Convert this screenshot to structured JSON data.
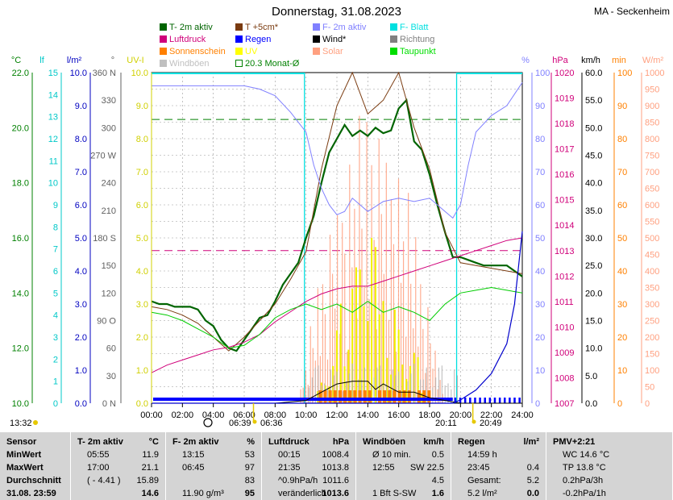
{
  "header": {
    "title": "Donnerstag, 31.08.2023",
    "station": "MA - Seckenheim"
  },
  "legend": [
    {
      "label": "T- 2m aktiv",
      "color": "#006400"
    },
    {
      "label": "T +5cm*",
      "color": "#7a3b10"
    },
    {
      "label": "F- 2m aktiv",
      "color": "#8080ff"
    },
    {
      "label": "F- Blatt",
      "color": "#00e0e0"
    },
    {
      "label": "Luftdruck",
      "color": "#d0007a"
    },
    {
      "label": "Regen",
      "color": "#0000ff"
    },
    {
      "label": "Wind*",
      "color": "#000000"
    },
    {
      "label": "Richtung",
      "color": "#808080"
    },
    {
      "label": "Sonnenschein",
      "color": "#ff8000"
    },
    {
      "label": "UV",
      "color": "#ffff00"
    },
    {
      "label": "Solar",
      "color": "#ffa080"
    },
    {
      "label": "Taupunkt",
      "color": "#00dd00"
    },
    {
      "label": "Windböen",
      "color": "#c0c0c0"
    },
    {
      "label": "20.3 Monat-Ø",
      "color": "#008000"
    }
  ],
  "axes": {
    "temp": {
      "unit": "°C",
      "ticks": [
        "22.0",
        "20.0",
        "18.0",
        "16.0",
        "14.0",
        "12.0",
        "10.0"
      ],
      "color": "#008000"
    },
    "leaf": {
      "unit": "lf",
      "ticks": [
        "15",
        "14",
        "13",
        "12",
        "11",
        "10",
        "9",
        "8",
        "7",
        "6",
        "5",
        "4",
        "3",
        "2",
        "1",
        "0"
      ],
      "color": "#00c8c8"
    },
    "rain": {
      "unit": "l/m²",
      "ticks": [
        "10.0",
        "9.0",
        "8.0",
        "7.0",
        "6.0",
        "5.0",
        "4.0",
        "3.0",
        "2.0",
        "1.0",
        "0.0"
      ],
      "color": "#0000c0"
    },
    "dir": {
      "unit": "°",
      "ticks": [
        "360 N",
        "330",
        "300",
        "270 W",
        "240",
        "210",
        "180 S",
        "150",
        "120",
        "90 O",
        "60",
        "30",
        "0 N"
      ],
      "color": "#606060"
    },
    "uv": {
      "unit": "UV-I",
      "ticks": [
        "10.0",
        "9.0",
        "8.0",
        "7.0",
        "6.0",
        "5.0",
        "4.0",
        "3.0",
        "2.0",
        "1.0",
        "0.0"
      ],
      "color": "#d0d000"
    },
    "hum": {
      "unit": "%",
      "ticks": [
        "100",
        "90",
        "80",
        "70",
        "60",
        "50",
        "40",
        "30",
        "20",
        "10",
        "0"
      ],
      "color": "#8080ff"
    },
    "press": {
      "unit": "hPa",
      "ticks": [
        "1020",
        "1019",
        "1018",
        "1017",
        "1016",
        "1015",
        "1014",
        "1013",
        "1012",
        "1011",
        "1010",
        "1009",
        "1008",
        "1007"
      ],
      "color": "#d0007a"
    },
    "wind": {
      "unit": "km/h",
      "ticks": [
        "60.0",
        "55.0",
        "50.0",
        "45.0",
        "40.0",
        "35.0",
        "30.0",
        "25.0",
        "20.0",
        "15.0",
        "10.0",
        "5.0",
        "0.0"
      ],
      "color": "#000000"
    },
    "min": {
      "unit": "min",
      "ticks": [
        "100",
        "90",
        "80",
        "70",
        "60",
        "50",
        "40",
        "30",
        "20",
        "10",
        "0"
      ],
      "color": "#ff8000"
    },
    "solar": {
      "unit": "W/m²",
      "ticks": [
        "1000",
        "950",
        "900",
        "850",
        "800",
        "750",
        "700",
        "650",
        "600",
        "550",
        "500",
        "450",
        "400",
        "350",
        "300",
        "250",
        "200",
        "150",
        "100",
        "50",
        "0"
      ],
      "color": "#ffa080"
    },
    "time": [
      "00:00",
      "02:00",
      "04:00",
      "06:00",
      "08:00",
      "10:00",
      "12:00",
      "14:00",
      "16:00",
      "18:00",
      "20:00",
      "22:00",
      "24:00"
    ]
  },
  "sun": {
    "rise": "06:39",
    "set": "20:49",
    "rise_up_to": "06:36",
    "set_from": "20:11",
    "current_time": "13:32"
  },
  "chart_data": {
    "type": "line",
    "title": "Donnerstag, 31.08.2023",
    "x_unit": "hours",
    "xlim": [
      0,
      24
    ],
    "month_avg_temp": 20.3,
    "series": [
      {
        "name": "T- 2m aktiv",
        "axis": "temp",
        "ylim": [
          10,
          22
        ],
        "x": [
          0,
          0.5,
          1,
          1.5,
          2,
          2.5,
          3,
          3.5,
          4,
          4.5,
          5,
          5.5,
          6,
          6.5,
          7,
          7.5,
          8,
          8.5,
          9,
          9.5,
          10,
          10.5,
          11,
          11.5,
          12,
          12.5,
          13,
          13.5,
          14,
          14.5,
          15,
          15.5,
          16,
          16.5,
          17,
          17.5,
          18,
          18.5,
          19,
          19.5,
          20,
          20.5,
          21,
          21.5,
          22,
          22.5,
          23,
          23.5,
          24
        ],
        "y": [
          13.7,
          13.6,
          13.6,
          13.5,
          13.5,
          13.5,
          13.4,
          13.0,
          12.8,
          12.3,
          12.0,
          11.9,
          12.3,
          12.7,
          13.1,
          13.2,
          13.7,
          14.3,
          14.7,
          15.1,
          16.0,
          16.8,
          18.0,
          19.1,
          19.6,
          20.1,
          19.7,
          19.9,
          19.7,
          20.0,
          19.8,
          19.9,
          20.7,
          21.0,
          19.5,
          19.2,
          18.3,
          17.2,
          16.2,
          15.3,
          15.3,
          15.2,
          15.1,
          15.0,
          15.0,
          15.0,
          15.0,
          14.8,
          14.6
        ]
      },
      {
        "name": "T +5cm*",
        "axis": "temp",
        "ylim": [
          10,
          22
        ],
        "x": [
          0,
          1,
          2,
          3,
          4,
          5,
          6,
          7,
          8,
          9,
          10,
          11,
          12,
          13,
          14,
          15,
          16,
          17,
          18,
          19,
          20,
          21,
          22,
          23,
          24
        ],
        "y": [
          13.5,
          13.4,
          13.2,
          12.9,
          12.4,
          11.9,
          12.4,
          13.0,
          13.6,
          14.5,
          15.5,
          18.5,
          20.8,
          22.0,
          20.5,
          21.0,
          22.0,
          20.0,
          18.5,
          16.2,
          15.1,
          15.0,
          14.9,
          14.8,
          14.7
        ]
      },
      {
        "name": "F- 2m aktiv",
        "axis": "hum",
        "ylim": [
          0,
          100
        ],
        "x": [
          0,
          2,
          4,
          6,
          7,
          8,
          9,
          10,
          10.5,
          11,
          11.5,
          12,
          12.5,
          13,
          14,
          15,
          16,
          17,
          18,
          19,
          19.5,
          20,
          20.5,
          21,
          22,
          23,
          24
        ],
        "y": [
          96,
          96,
          96,
          96,
          95,
          93,
          88,
          82,
          72,
          65,
          60,
          57,
          58,
          62,
          58,
          61,
          62,
          61,
          62,
          58,
          56,
          60,
          72,
          82,
          87,
          90,
          97
        ]
      },
      {
        "name": "Luftdruck",
        "axis": "press",
        "ylim": [
          1007,
          1020
        ],
        "x": [
          0,
          1,
          2,
          3,
          4,
          5,
          6,
          7,
          8,
          9,
          10,
          11,
          12,
          13,
          14,
          15,
          16,
          17,
          18,
          19,
          20,
          21,
          22,
          23,
          24
        ],
        "y": [
          1008.2,
          1008.5,
          1008.7,
          1008.9,
          1009.1,
          1009.2,
          1009.4,
          1009.7,
          1010.2,
          1010.6,
          1011.0,
          1011.3,
          1011.5,
          1011.6,
          1011.6,
          1011.8,
          1012.0,
          1012.2,
          1012.4,
          1012.6,
          1012.8,
          1013.0,
          1013.2,
          1013.4,
          1013.5
        ]
      },
      {
        "name": "Taupunkt",
        "axis": "temp",
        "ylim": [
          10,
          22
        ],
        "x": [
          0,
          1,
          2,
          3,
          4,
          5,
          6,
          7,
          8,
          9,
          10,
          11,
          12,
          13,
          14,
          15,
          16,
          17,
          18,
          19,
          20,
          21,
          22,
          23,
          24
        ],
        "y": [
          13.3,
          13.2,
          13.0,
          12.7,
          12.4,
          12.0,
          12.1,
          12.5,
          13.1,
          13.4,
          13.6,
          13.4,
          13.6,
          13.3,
          13.7,
          13.3,
          13.5,
          13.3,
          13.0,
          13.6,
          14.0,
          14.1,
          14.2,
          14.1,
          14.0
        ]
      },
      {
        "name": "Wind*",
        "axis": "wind",
        "ylim": [
          0,
          60
        ],
        "x": [
          0,
          4,
          8,
          10,
          11,
          12,
          13,
          14,
          14.5,
          15,
          16,
          17,
          18,
          19,
          20,
          24
        ],
        "y": [
          0,
          0,
          0,
          0.5,
          2.0,
          3.5,
          4.0,
          4.0,
          2.5,
          3.5,
          2.0,
          2.0,
          1.0,
          0.5,
          0,
          0
        ]
      },
      {
        "name": "Regen",
        "axis": "rain",
        "ylim": [
          0,
          10
        ],
        "x": [
          0,
          19.5,
          20,
          21,
          22,
          23,
          23.5,
          24
        ],
        "y": [
          0,
          0,
          0.1,
          0.4,
          0.9,
          1.8,
          3.0,
          5.2
        ]
      }
    ]
  },
  "stats": {
    "columns": [
      {
        "header": "Sensor",
        "unit": "",
        "rows": [
          [
            "MinWert",
            "",
            ""
          ],
          [
            "MaxWert",
            "",
            ""
          ],
          [
            "Durchschnitt",
            "",
            ""
          ],
          [
            "31.08. 23:59",
            "",
            ""
          ]
        ]
      },
      {
        "header": "T- 2m aktiv",
        "unit": "°C",
        "rows": [
          [
            "05:55",
            "11.9"
          ],
          [
            "17:00",
            "21.1"
          ],
          [
            "( - 4.41 )",
            "15.89"
          ],
          [
            "",
            "14.6"
          ]
        ]
      },
      {
        "header": "F- 2m aktiv",
        "unit": "%",
        "rows": [
          [
            "13:15",
            "53"
          ],
          [
            "06:45",
            "97"
          ],
          [
            "",
            "83"
          ],
          [
            "11.90 g/m³",
            "95"
          ]
        ]
      },
      {
        "header": "Luftdruck",
        "unit": "hPa",
        "rows": [
          [
            "00:15",
            "1008.4"
          ],
          [
            "21:35",
            "1013.8"
          ],
          [
            "^0.9hPa/h",
            "1011.6"
          ],
          [
            "veränderlich",
            "1013.6"
          ]
        ]
      },
      {
        "header": "Windböen",
        "unit": "km/h",
        "rows": [
          [
            "Ø 10 min.",
            "0.5"
          ],
          [
            "12:55",
            "SW 22.5"
          ],
          [
            "",
            "4.5"
          ],
          [
            "1 Bft S-SW",
            "1.6"
          ]
        ]
      },
      {
        "header": "Regen",
        "unit": "l/m²",
        "rows": [
          [
            "14:59 h",
            ""
          ],
          [
            "23:45",
            "0.4"
          ],
          [
            "Gesamt:",
            "5.2"
          ],
          [
            "5.2 l/m²",
            "0.0"
          ]
        ]
      },
      {
        "header": "PMV+2:21",
        "unit": "",
        "rows": [
          [
            "WC 14.6 °C",
            ""
          ],
          [
            "TP 13.8 °C",
            ""
          ],
          [
            "0.2hPa/3h",
            ""
          ],
          [
            "-0.2hPa/1h",
            ""
          ]
        ]
      }
    ]
  }
}
